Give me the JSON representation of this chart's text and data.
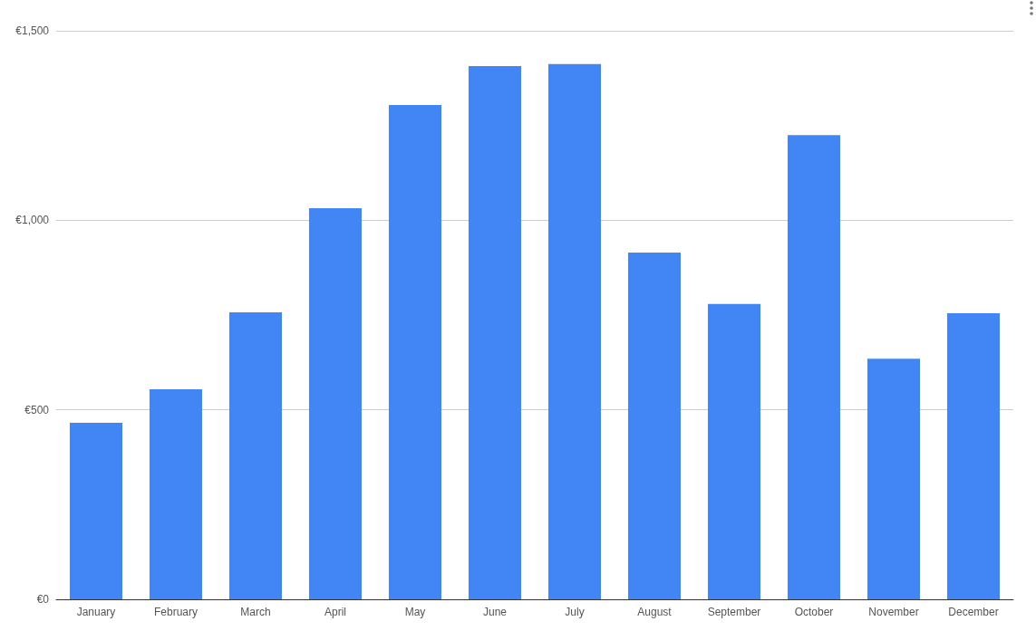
{
  "chart_data": {
    "type": "bar",
    "categories": [
      "January",
      "February",
      "March",
      "April",
      "May",
      "June",
      "July",
      "August",
      "September",
      "October",
      "November",
      "December"
    ],
    "values": [
      466,
      554,
      757,
      1032,
      1304,
      1407,
      1412,
      915,
      779,
      1225,
      635,
      755
    ],
    "color": "#4285f4",
    "ylim": [
      0,
      1500
    ],
    "yticks": [
      {
        "value": 0,
        "label": "€0"
      },
      {
        "value": 500,
        "label": "€500"
      },
      {
        "value": 1000,
        "label": "€1,000"
      },
      {
        "value": 1500,
        "label": "€1,500"
      }
    ],
    "grid": "y"
  }
}
